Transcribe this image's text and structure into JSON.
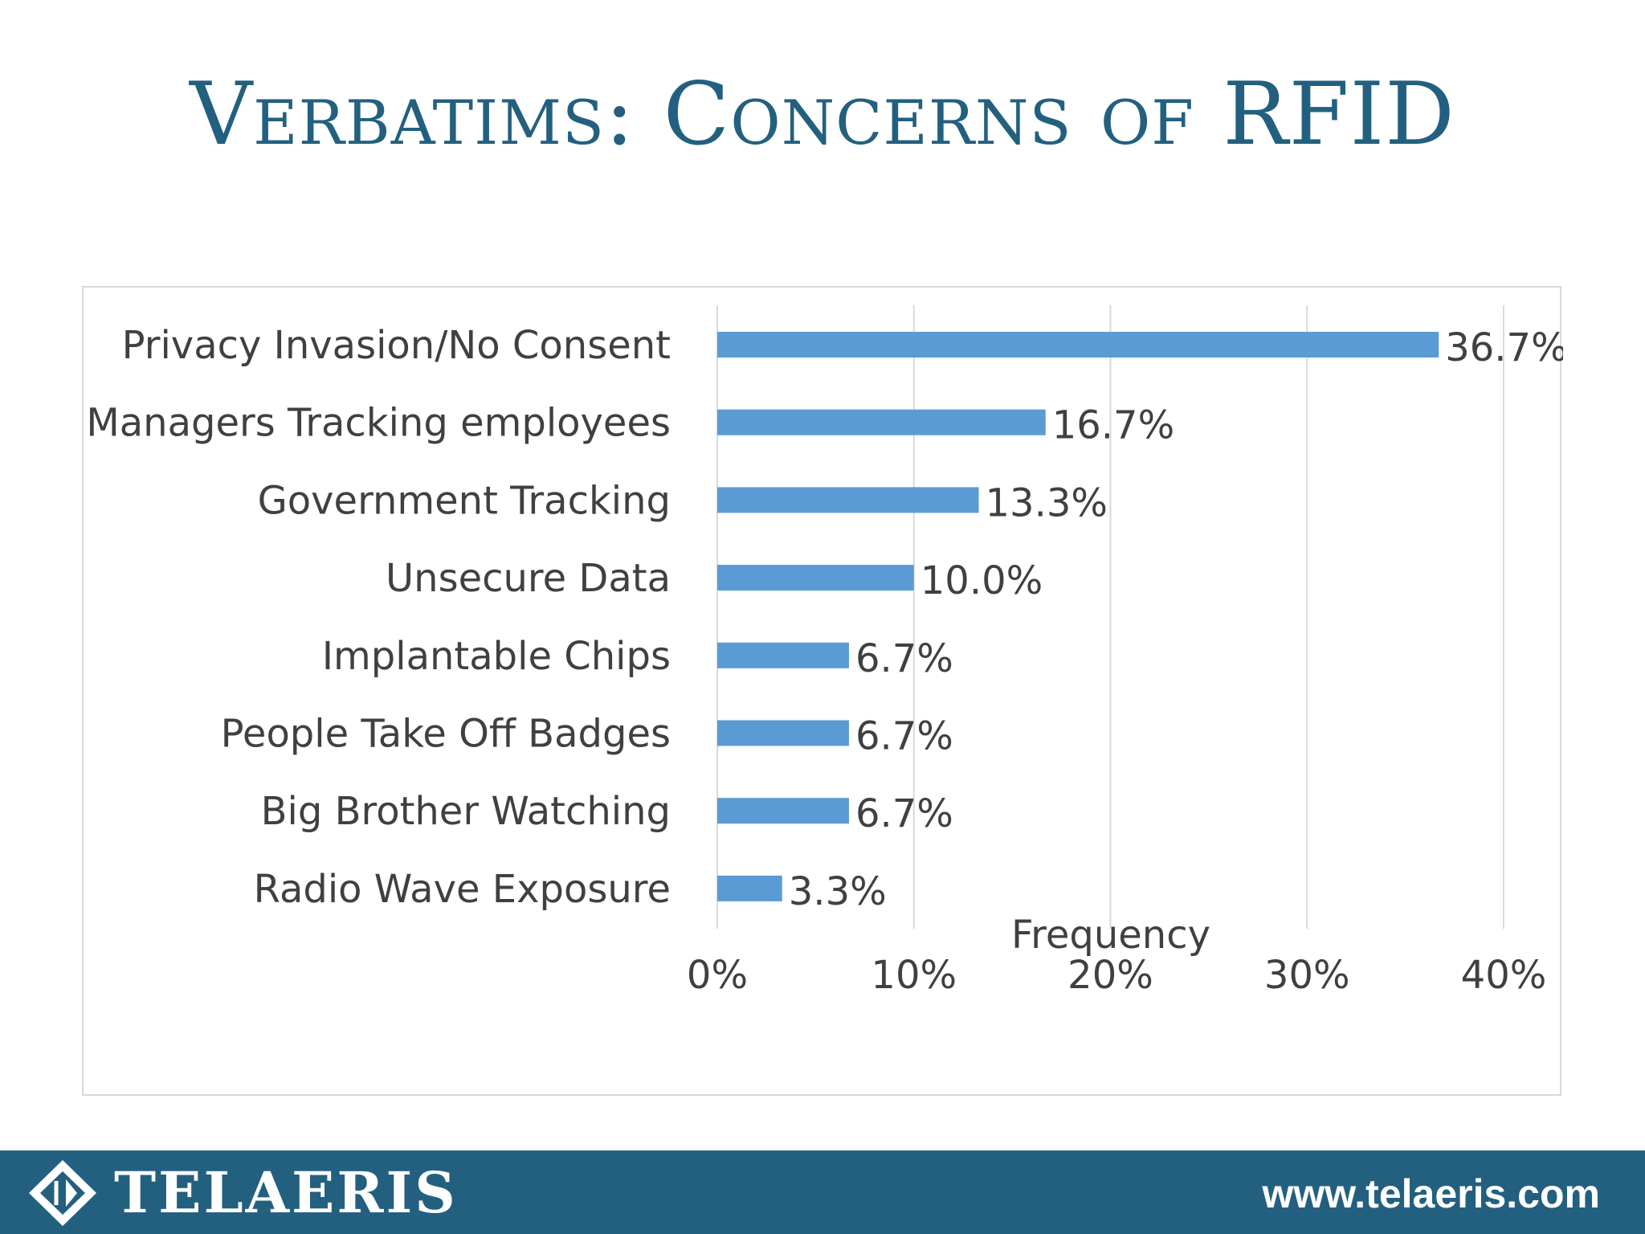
{
  "slide": {
    "title": "Verbatims: Concerns of RFID"
  },
  "footer": {
    "brand": "TELAERIS",
    "url": "www.telaeris.com",
    "logo_icon": "diamond-logo-icon"
  },
  "colors": {
    "title": "#23607f",
    "bar": "#5b9bd5",
    "footer_bg": "#23607f",
    "gridline": "#d9d9d9",
    "text": "#404040"
  },
  "chart_data": {
    "type": "bar",
    "orientation": "horizontal",
    "categories": [
      "Privacy Invasion/No Consent",
      "Managers Tracking employees",
      "Government Tracking",
      "Unsecure Data",
      "Implantable Chips",
      "People Take Off Badges",
      "Big Brother Watching",
      "Radio Wave Exposure"
    ],
    "values": [
      36.7,
      16.7,
      13.3,
      10.0,
      6.7,
      6.7,
      6.7,
      3.3
    ],
    "data_labels": [
      "36.7%",
      "16.7%",
      "13.3%",
      "10.0%",
      "6.7%",
      "6.7%",
      "6.7%",
      "3.3%"
    ],
    "title": "",
    "xlabel": "Frequency",
    "ylabel": "",
    "xlim": [
      0,
      40
    ],
    "xticks": [
      0,
      10,
      20,
      30,
      40
    ],
    "xtick_labels": [
      "0%",
      "10%",
      "20%",
      "30%",
      "40%"
    ],
    "grid": "vertical",
    "legend": "none"
  }
}
